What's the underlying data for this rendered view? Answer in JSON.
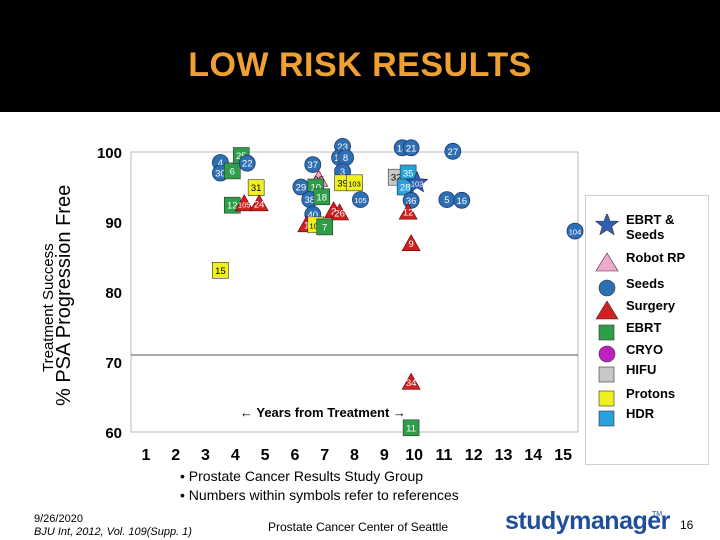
{
  "slide": {
    "title": "LOW RISK RESULTS",
    "y_label_outer": "Treatment Success",
    "y_label_inner": "% PSA Progression Free",
    "years_label": "← Years from Treatment →",
    "footnotes": [
      "• Prostate Cancer Results Study Group",
      "• Numbers within symbols refer to references"
    ],
    "footer_date": "9/26/2020",
    "footer_ref": "BJU Int, 2012, Vol. 109(Supp. 1)",
    "footer_org": "Prostate Cancer Center of Seattle",
    "logo_text": "studymanager",
    "logo_tm": "TM",
    "page_number": "16"
  },
  "colors": {
    "header": "#000000",
    "title": "#f0a030",
    "seeds": "#2e6fb4",
    "surgery": "#d02020",
    "ebrt": "#2e9e4a",
    "cryo": "#c020c0",
    "hifu": "#c8c8c8",
    "protons": "#f0f020",
    "hdr": "#2aa0dc",
    "robot_rp": "#f0a8d0",
    "ebrt_seeds": "#2e5fb4"
  },
  "legend": [
    {
      "key": "ebrt_seeds",
      "shape": "star",
      "label": "EBRT & Seeds"
    },
    {
      "key": "robot_rp",
      "shape": "triangle",
      "label": "Robot RP"
    },
    {
      "key": "seeds",
      "shape": "circle",
      "label": "Seeds"
    },
    {
      "key": "surgery",
      "shape": "triangle",
      "label": "Surgery"
    },
    {
      "key": "ebrt",
      "shape": "square",
      "label": "EBRT"
    },
    {
      "key": "cryo",
      "shape": "circle",
      "label": "CRYO"
    },
    {
      "key": "hifu",
      "shape": "square",
      "label": "HIFU"
    },
    {
      "key": "protons",
      "shape": "square",
      "label": "Protons"
    },
    {
      "key": "hdr",
      "shape": "square",
      "label": "HDR"
    }
  ],
  "chart_data": {
    "type": "scatter",
    "title": "",
    "xlabel": "← Years from Treatment →",
    "ylabel": "% PSA Progression Free",
    "x_ticks": [
      1,
      2,
      3,
      4,
      5,
      6,
      7,
      8,
      9,
      10,
      11,
      12,
      13,
      14,
      15
    ],
    "y_ticks": [
      60,
      70,
      80,
      90,
      100
    ],
    "xlim": [
      0.5,
      15.5
    ],
    "ylim": [
      60,
      100
    ],
    "reference_line_y": 71,
    "points": [
      {
        "x": 3.5,
        "y": 98.5,
        "cat": "seeds",
        "label": "4"
      },
      {
        "x": 3.5,
        "y": 97.0,
        "cat": "seeds",
        "label": "30"
      },
      {
        "x": 3.9,
        "y": 97.3,
        "cat": "ebrt",
        "label": "6"
      },
      {
        "x": 4.2,
        "y": 99.5,
        "cat": "ebrt",
        "label": "25"
      },
      {
        "x": 4.4,
        "y": 98.4,
        "cat": "seeds",
        "label": "22"
      },
      {
        "x": 6.6,
        "y": 98.2,
        "cat": "seeds",
        "label": "37"
      },
      {
        "x": 7.6,
        "y": 100.8,
        "cat": "seeds",
        "label": "23"
      },
      {
        "x": 7.5,
        "y": 99.2,
        "cat": "seeds",
        "label": "13"
      },
      {
        "x": 7.7,
        "y": 99.2,
        "cat": "seeds",
        "label": "8"
      },
      {
        "x": 9.6,
        "y": 100.6,
        "cat": "seeds",
        "label": "14"
      },
      {
        "x": 9.9,
        "y": 100.6,
        "cat": "seeds",
        "label": "21"
      },
      {
        "x": 11.3,
        "y": 100.1,
        "cat": "seeds",
        "label": "27"
      },
      {
        "x": 7.6,
        "y": 97.2,
        "cat": "seeds",
        "label": "3"
      },
      {
        "x": 9.4,
        "y": 96.4,
        "cat": "hifu",
        "label": "32"
      },
      {
        "x": 9.8,
        "y": 97.0,
        "cat": "hdr",
        "label": "35"
      },
      {
        "x": 6.8,
        "y": 96.1,
        "cat": "robot_rp",
        "label": "35"
      },
      {
        "x": 7.6,
        "y": 95.6,
        "cat": "protons",
        "label": "39"
      },
      {
        "x": 8.0,
        "y": 95.6,
        "cat": "protons",
        "label": "103"
      },
      {
        "x": 4.7,
        "y": 94.9,
        "cat": "protons",
        "label": "31"
      },
      {
        "x": 6.2,
        "y": 95.0,
        "cat": "seeds",
        "label": "29"
      },
      {
        "x": 6.7,
        "y": 95.0,
        "cat": "ebrt",
        "label": "10"
      },
      {
        "x": 9.7,
        "y": 95.0,
        "cat": "hdr",
        "label": "28"
      },
      {
        "x": 10.1,
        "y": 95.6,
        "cat": "ebrt_seeds",
        "label": "102"
      },
      {
        "x": 6.5,
        "y": 93.2,
        "cat": "seeds",
        "label": "38"
      },
      {
        "x": 6.9,
        "y": 93.6,
        "cat": "ebrt",
        "label": "18"
      },
      {
        "x": 8.2,
        "y": 93.2,
        "cat": "seeds",
        "label": "105"
      },
      {
        "x": 9.9,
        "y": 93.1,
        "cat": "seeds",
        "label": "36"
      },
      {
        "x": 11.1,
        "y": 93.2,
        "cat": "seeds",
        "label": "5"
      },
      {
        "x": 11.6,
        "y": 93.1,
        "cat": "seeds",
        "label": "16"
      },
      {
        "x": 3.9,
        "y": 92.4,
        "cat": "ebrt",
        "label": "12"
      },
      {
        "x": 4.3,
        "y": 92.6,
        "cat": "surgery",
        "label": "105"
      },
      {
        "x": 4.8,
        "y": 92.6,
        "cat": "surgery",
        "label": "24"
      },
      {
        "x": 6.6,
        "y": 91.1,
        "cat": "seeds",
        "label": "40"
      },
      {
        "x": 7.3,
        "y": 91.6,
        "cat": "surgery",
        "label": "2"
      },
      {
        "x": 7.5,
        "y": 91.3,
        "cat": "surgery",
        "label": "26"
      },
      {
        "x": 9.8,
        "y": 91.4,
        "cat": "surgery",
        "label": "12"
      },
      {
        "x": 6.4,
        "y": 89.6,
        "cat": "surgery",
        "label": "1"
      },
      {
        "x": 6.7,
        "y": 89.6,
        "cat": "protons",
        "label": "100"
      },
      {
        "x": 7.0,
        "y": 89.3,
        "cat": "ebrt",
        "label": "7"
      },
      {
        "x": 15.4,
        "y": 88.7,
        "cat": "seeds",
        "label": "104"
      },
      {
        "x": 9.9,
        "y": 86.9,
        "cat": "surgery",
        "label": "9"
      },
      {
        "x": 3.5,
        "y": 83.1,
        "cat": "protons",
        "label": "15"
      },
      {
        "x": 9.9,
        "y": 67.1,
        "cat": "surgery",
        "label": "34"
      },
      {
        "x": 9.9,
        "y": 60.6,
        "cat": "ebrt",
        "label": "11"
      }
    ]
  }
}
